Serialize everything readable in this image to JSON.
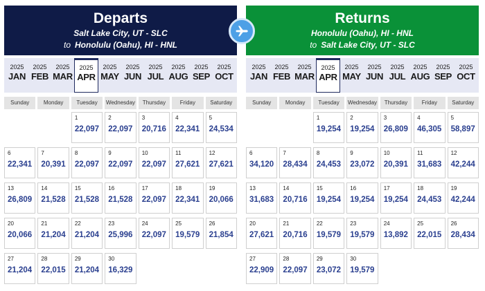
{
  "departs": {
    "title": "Departs",
    "from": "Salt Lake City, UT - SLC",
    "to_prefix": "to",
    "to": "Honolulu (Oahu), HI - HNL",
    "months": [
      {
        "year": "2025",
        "label": "JAN"
      },
      {
        "year": "2025",
        "label": "FEB"
      },
      {
        "year": "2025",
        "label": "MAR"
      },
      {
        "year": "2025",
        "label": "APR",
        "selected": true
      },
      {
        "year": "2025",
        "label": "MAY"
      },
      {
        "year": "2025",
        "label": "JUN"
      },
      {
        "year": "2025",
        "label": "JUL"
      },
      {
        "year": "2025",
        "label": "AUG"
      },
      {
        "year": "2025",
        "label": "SEP"
      },
      {
        "year": "2025",
        "label": "OCT"
      }
    ],
    "weekdays": [
      "Sunday",
      "Monday",
      "Tuesday",
      "Wednesday",
      "Thursday",
      "Friday",
      "Saturday"
    ],
    "first_weekday_index": 2,
    "days": [
      {
        "day": "1",
        "price": "22,097"
      },
      {
        "day": "2",
        "price": "22,097"
      },
      {
        "day": "3",
        "price": "20,716"
      },
      {
        "day": "4",
        "price": "22,341"
      },
      {
        "day": "5",
        "price": "24,534"
      },
      {
        "day": "6",
        "price": "22,341"
      },
      {
        "day": "7",
        "price": "20,391"
      },
      {
        "day": "8",
        "price": "22,097"
      },
      {
        "day": "9",
        "price": "22,097"
      },
      {
        "day": "10",
        "price": "22,097"
      },
      {
        "day": "11",
        "price": "27,621"
      },
      {
        "day": "12",
        "price": "27,621"
      },
      {
        "day": "13",
        "price": "26,809"
      },
      {
        "day": "14",
        "price": "21,528"
      },
      {
        "day": "15",
        "price": "21,528"
      },
      {
        "day": "16",
        "price": "21,528"
      },
      {
        "day": "17",
        "price": "22,097"
      },
      {
        "day": "18",
        "price": "22,341"
      },
      {
        "day": "19",
        "price": "20,066"
      },
      {
        "day": "20",
        "price": "20,066"
      },
      {
        "day": "21",
        "price": "21,204"
      },
      {
        "day": "22",
        "price": "21,204"
      },
      {
        "day": "23",
        "price": "25,996"
      },
      {
        "day": "24",
        "price": "22,097"
      },
      {
        "day": "25",
        "price": "19,579"
      },
      {
        "day": "26",
        "price": "21,854"
      },
      {
        "day": "27",
        "price": "21,204"
      },
      {
        "day": "28",
        "price": "22,015"
      },
      {
        "day": "29",
        "price": "21,204"
      },
      {
        "day": "30",
        "price": "16,329"
      }
    ]
  },
  "returns": {
    "title": "Returns",
    "from": "Honolulu (Oahu), HI - HNL",
    "to_prefix": "to",
    "to": "Salt Lake City, UT - SLC",
    "months": [
      {
        "year": "2025",
        "label": "JAN"
      },
      {
        "year": "2025",
        "label": "FEB"
      },
      {
        "year": "2025",
        "label": "MAR"
      },
      {
        "year": "2025",
        "label": "APR",
        "selected": true
      },
      {
        "year": "2025",
        "label": "MAY"
      },
      {
        "year": "2025",
        "label": "JUN"
      },
      {
        "year": "2025",
        "label": "JUL"
      },
      {
        "year": "2025",
        "label": "AUG"
      },
      {
        "year": "2025",
        "label": "SEP"
      },
      {
        "year": "2025",
        "label": "OCT"
      }
    ],
    "weekdays": [
      "Sunday",
      "Monday",
      "Tuesday",
      "Wednesday",
      "Thursday",
      "Friday",
      "Saturday"
    ],
    "first_weekday_index": 2,
    "days": [
      {
        "day": "1",
        "price": "19,254"
      },
      {
        "day": "2",
        "price": "19,254"
      },
      {
        "day": "3",
        "price": "26,809"
      },
      {
        "day": "4",
        "price": "46,305"
      },
      {
        "day": "5",
        "price": "58,897"
      },
      {
        "day": "6",
        "price": "34,120"
      },
      {
        "day": "7",
        "price": "28,434"
      },
      {
        "day": "8",
        "price": "24,453"
      },
      {
        "day": "9",
        "price": "23,072"
      },
      {
        "day": "10",
        "price": "20,391"
      },
      {
        "day": "11",
        "price": "31,683"
      },
      {
        "day": "12",
        "price": "42,244"
      },
      {
        "day": "13",
        "price": "31,683"
      },
      {
        "day": "14",
        "price": "20,716"
      },
      {
        "day": "15",
        "price": "19,254"
      },
      {
        "day": "16",
        "price": "19,254"
      },
      {
        "day": "17",
        "price": "19,254"
      },
      {
        "day": "18",
        "price": "24,453"
      },
      {
        "day": "19",
        "price": "42,244"
      },
      {
        "day": "20",
        "price": "27,621"
      },
      {
        "day": "21",
        "price": "20,716"
      },
      {
        "day": "22",
        "price": "19,579"
      },
      {
        "day": "23",
        "price": "19,579"
      },
      {
        "day": "24",
        "price": "13,892"
      },
      {
        "day": "25",
        "price": "22,015"
      },
      {
        "day": "26",
        "price": "28,434"
      },
      {
        "day": "27",
        "price": "22,909"
      },
      {
        "day": "28",
        "price": "22,097"
      },
      {
        "day": "29",
        "price": "23,072"
      },
      {
        "day": "30",
        "price": "19,579"
      }
    ]
  },
  "colors": {
    "departs_header": "#0f1b47",
    "returns_header": "#0a9138",
    "price_text": "#2a3f8f",
    "swap_button": "#4da0e6"
  },
  "icons": {
    "swap_button": "airplane-icon"
  }
}
